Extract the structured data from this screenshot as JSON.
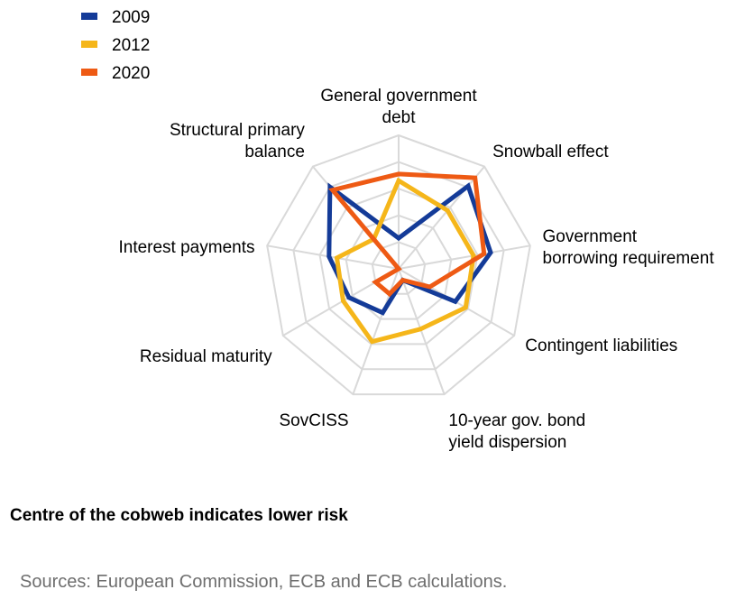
{
  "chart_data": {
    "type": "radar",
    "axes": [
      [
        "General government",
        "debt"
      ],
      [
        "Snowball effect"
      ],
      [
        "Government",
        "borrowing requirement"
      ],
      [
        "Contingent liabilities"
      ],
      [
        "10-year gov. bond",
        "yield dispersion"
      ],
      [
        "SovCISS"
      ],
      [
        "Residual maturity"
      ],
      [
        "Interest payments"
      ],
      [
        "Structural primary",
        "balance"
      ]
    ],
    "rlim": [
      0,
      10
    ],
    "rings": 5,
    "grid": true,
    "legend_position": "top-left",
    "series": [
      {
        "name": "2009",
        "color": "#143b98",
        "values": [
          2.3,
          8.1,
          7.0,
          4.9,
          0.9,
          3.5,
          4.3,
          5.3,
          8.0
        ]
      },
      {
        "name": "2012",
        "color": "#f5b61a",
        "values": [
          6.6,
          5.7,
          5.7,
          5.8,
          4.8,
          5.8,
          4.8,
          4.7,
          2.9
        ]
      },
      {
        "name": "2020",
        "color": "#ee5a14",
        "values": [
          7.1,
          8.9,
          6.5,
          2.7,
          0.9,
          2.0,
          2.0,
          0.0,
          7.7
        ]
      }
    ]
  },
  "note": "Centre of the cobweb  indicates lower  risk",
  "sources": "Sources: European Commission, ECB and ECB calculations."
}
